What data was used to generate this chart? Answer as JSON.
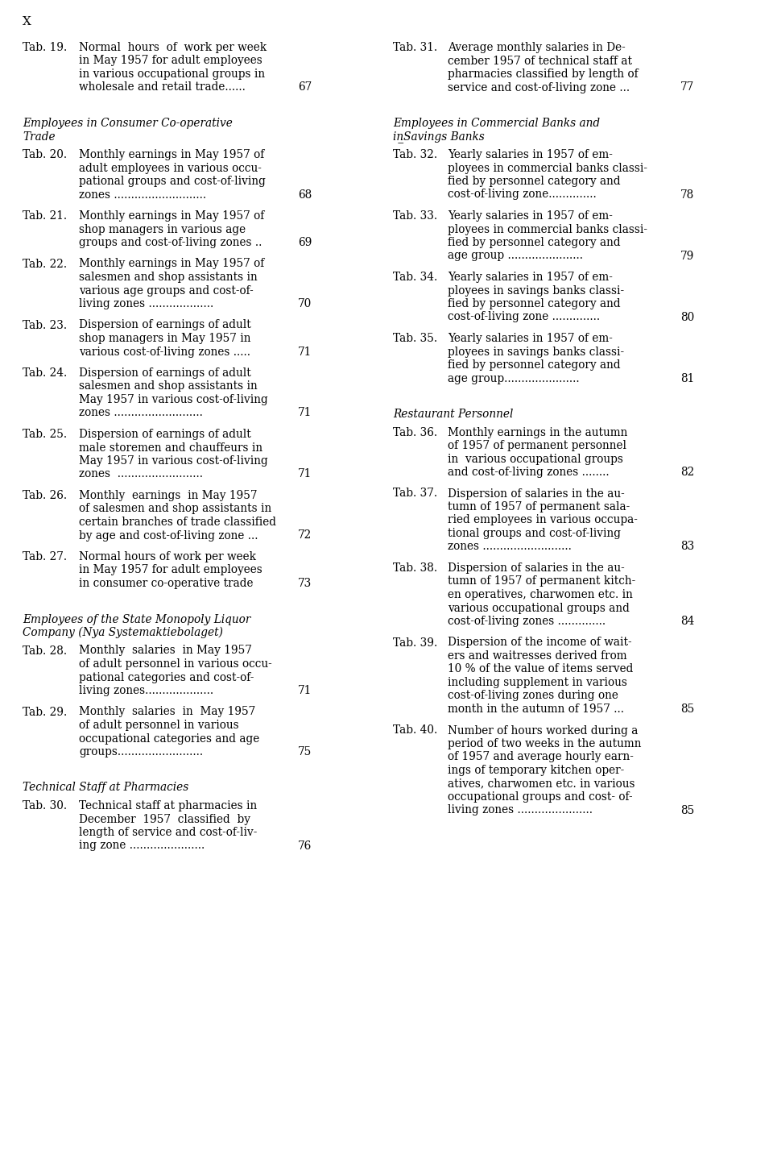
{
  "page_marker": "X",
  "background_color": "#ffffff",
  "text_color": "#000000",
  "left_column": [
    {
      "type": "entry",
      "tab": "Tab. 19.",
      "text": [
        "Normal  hours  of  work per week",
        "in May 1957 for adult employees",
        "in various occupational groups in",
        "wholesale and retail trade......"
      ],
      "page": "67"
    },
    {
      "type": "section_header",
      "lines": [
        "Employees in Consumer Co-operative",
        "Trade"
      ]
    },
    {
      "type": "entry",
      "tab": "Tab. 20.",
      "text": [
        "Monthly earnings in May 1957 of",
        "adult employees in various occu-",
        "pational groups and cost-of-living",
        "zones ..........................."
      ],
      "page": "68"
    },
    {
      "type": "entry",
      "tab": "Tab. 21.",
      "text": [
        "Monthly earnings in May 1957 of",
        "shop managers in various age",
        "groups and cost-of-living zones .."
      ],
      "page": "69"
    },
    {
      "type": "entry",
      "tab": "Tab. 22.",
      "text": [
        "Monthly earnings in May 1957 of",
        "salesmen and shop assistants in",
        "various age groups and cost-of-",
        "living zones ..................."
      ],
      "page": "70"
    },
    {
      "type": "entry",
      "tab": "Tab. 23.",
      "text": [
        "Dispersion of earnings of adult",
        "shop managers in May 1957 in",
        "various cost-of-living zones ....."
      ],
      "page": "71"
    },
    {
      "type": "entry",
      "tab": "Tab. 24.",
      "text": [
        "Dispersion of earnings of adult",
        "salesmen and shop assistants in",
        "May 1957 in various cost-of-living",
        "zones .........................."
      ],
      "page": "71"
    },
    {
      "type": "entry",
      "tab": "Tab. 25.",
      "text": [
        "Dispersion of earnings of adult",
        "male storemen and chauffeurs in",
        "May 1957 in various cost-of-living",
        "zones  ........................."
      ],
      "page": "71"
    },
    {
      "type": "entry",
      "tab": "Tab. 26.",
      "text": [
        "Monthly  earnings  in May 1957",
        "of salesmen and shop assistants in",
        "certain branches of trade classified",
        "by age and cost-of-living zone ..."
      ],
      "page": "72"
    },
    {
      "type": "entry",
      "tab": "Tab. 27.",
      "text": [
        "Normal hours of work per week",
        "in May 1957 for adult employees",
        "in consumer co-operative trade"
      ],
      "page": "73"
    },
    {
      "type": "section_header",
      "lines": [
        "Employees of the State Monopoly Liquor",
        "Company (Nya Systemaktiebolaget)"
      ]
    },
    {
      "type": "entry",
      "tab": "Tab. 28.",
      "text": [
        "Monthly  salaries  in May 1957",
        "of adult personnel in various occu-",
        "pational categories and cost-of-",
        "living zones...................."
      ],
      "page": "71"
    },
    {
      "type": "entry",
      "tab": "Tab. 29.",
      "text": [
        "Monthly  salaries  in  May 1957",
        "of adult personnel in various",
        "occupational categories and age",
        "groups........................."
      ],
      "page": "75"
    },
    {
      "type": "section_header",
      "lines": [
        "Technical Staff at Pharmacies"
      ]
    },
    {
      "type": "entry",
      "tab": "Tab. 30.",
      "text": [
        "Technical staff at pharmacies in",
        "December  1957  classified  by",
        "length of service and cost-of-liv-",
        "ing zone ......................"
      ],
      "page": "76"
    }
  ],
  "right_column": [
    {
      "type": "entry",
      "tab": "Tab. 31.",
      "text": [
        "Average monthly salaries in De-",
        "cember 1957 of technical staff at",
        "pharmacies classified by length of",
        "service and cost-of-living zone ..."
      ],
      "page": "77"
    },
    {
      "type": "section_header",
      "lines": [
        "Employees in Commercial Banks and",
        "in̲Savings Banks"
      ]
    },
    {
      "type": "entry",
      "tab": "Tab. 32.",
      "text": [
        "Yearly salaries in 1957 of em-",
        "ployees in commercial banks classi-",
        "fied by personnel category and",
        "cost-of-living zone.............."
      ],
      "page": "78"
    },
    {
      "type": "entry",
      "tab": "Tab. 33.",
      "text": [
        "Yearly salaries in 1957 of em-",
        "ployees in commercial banks classi-",
        "fied by personnel category and",
        "age group ......................"
      ],
      "page": "79"
    },
    {
      "type": "entry",
      "tab": "Tab. 34.",
      "text": [
        "Yearly salaries in 1957 of em-",
        "ployees in savings banks classi-",
        "fied by personnel category and",
        "cost-of-living zone .............."
      ],
      "page": "80"
    },
    {
      "type": "entry",
      "tab": "Tab. 35.",
      "text": [
        "Yearly salaries in 1957 of em-",
        "ployees in savings banks classi-",
        "fied by personnel category and",
        "age group......................"
      ],
      "page": "81"
    },
    {
      "type": "section_header",
      "lines": [
        "Restaurant Personnel"
      ]
    },
    {
      "type": "entry",
      "tab": "Tab. 36.",
      "text": [
        "Monthly earnings in the autumn",
        "of 1957 of permanent personnel",
        "in  various occupational groups",
        "and cost-of-living zones ........"
      ],
      "page": "82"
    },
    {
      "type": "entry",
      "tab": "Tab. 37.",
      "text": [
        "Dispersion of salaries in the au-",
        "tumn of 1957 of permanent sala-",
        "ried employees in various occupa-",
        "tional groups and cost-of-living",
        "zones .........................."
      ],
      "page": "83"
    },
    {
      "type": "entry",
      "tab": "Tab. 38.",
      "text": [
        "Dispersion of salaries in the au-",
        "tumn of 1957 of permanent kitch-",
        "en operatives, charwomen etc. in",
        "various occupational groups and",
        "cost-of-living zones .............."
      ],
      "page": "84"
    },
    {
      "type": "entry",
      "tab": "Tab. 39.",
      "text": [
        "Dispersion of the income of wait-",
        "ers and waitresses derived from",
        "10 % of the value of items served",
        "including supplement in various",
        "cost-of-living zones during one",
        "month in the autumn of 1957 ..."
      ],
      "page": "85"
    },
    {
      "type": "entry",
      "tab": "Tab. 40.",
      "text": [
        "Number of hours worked during a",
        "period of two weeks in the autumn",
        "of 1957 and average hourly earn-",
        "ings of temporary kitchen oper-",
        "atives, charwomen etc. in various",
        "occupational groups and cost- of-",
        "living zones ......................"
      ],
      "page": "85"
    }
  ]
}
